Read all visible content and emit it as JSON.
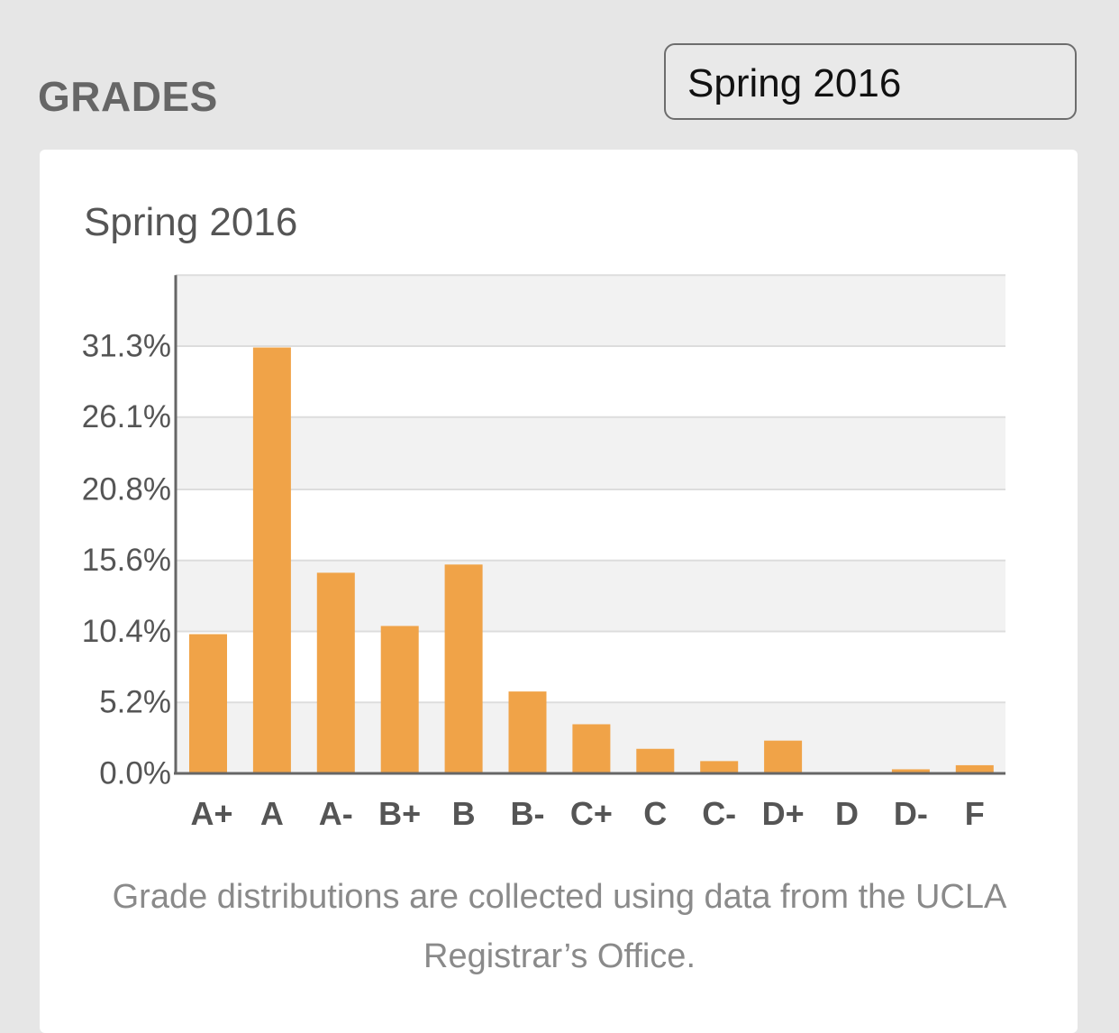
{
  "header": {
    "title": "GRADES",
    "term_select": {
      "selected": "Spring 2016"
    }
  },
  "card": {
    "footnote": "Grade distributions are collected using data from the UCLA Registrar’s Office."
  },
  "colors": {
    "bar": "#f0a348",
    "band_light": "#f2f2f2",
    "gridline": "#dddddd",
    "axis": "#666666"
  },
  "chart_data": {
    "type": "bar",
    "title": "Spring 2016",
    "categories": [
      "A+",
      "A",
      "A-",
      "B+",
      "B",
      "B-",
      "C+",
      "C",
      "C-",
      "D+",
      "D",
      "D-",
      "F"
    ],
    "values": [
      10.2,
      31.2,
      14.7,
      10.8,
      15.3,
      6.0,
      3.6,
      1.8,
      0.9,
      2.4,
      0.0,
      0.3,
      0.6
    ],
    "yticks": [
      0.0,
      5.2,
      10.4,
      15.6,
      20.8,
      26.1,
      31.3
    ],
    "ytick_labels": [
      "0.0%",
      "5.2%",
      "10.4%",
      "15.6%",
      "20.8%",
      "26.1%",
      "31.3%"
    ],
    "ylim": [
      0,
      36.5
    ],
    "xlabel": "",
    "ylabel": "",
    "grid": true
  }
}
